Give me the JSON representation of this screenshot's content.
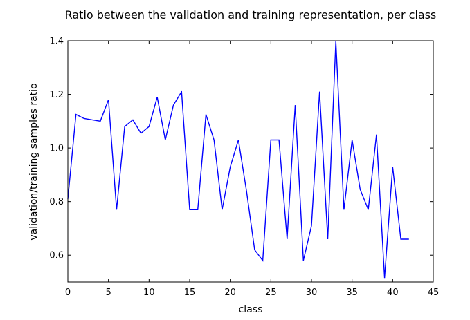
{
  "chart_data": {
    "type": "line",
    "title": "Ratio between the validation and training representation, per class",
    "xlabel": "class",
    "ylabel": "validation/training samples ratio",
    "xlim": [
      0,
      45
    ],
    "ylim": [
      0.5,
      1.4
    ],
    "xticks": [
      0,
      5,
      10,
      15,
      20,
      25,
      30,
      35,
      40,
      45
    ],
    "yticks": [
      0.6,
      0.8,
      1.0,
      1.2,
      1.4
    ],
    "grid": false,
    "series": [
      {
        "color": "#0000ff",
        "x": [
          0,
          1,
          2,
          3,
          4,
          5,
          6,
          7,
          8,
          9,
          10,
          11,
          12,
          13,
          14,
          15,
          16,
          17,
          18,
          19,
          20,
          21,
          22,
          23,
          24,
          25,
          26,
          27,
          28,
          29,
          30,
          31,
          32,
          33,
          34,
          35,
          36,
          37,
          38,
          39,
          40,
          41,
          42
        ],
        "values": [
          0.81,
          1.125,
          1.11,
          1.105,
          1.1,
          1.18,
          0.77,
          1.08,
          1.105,
          1.055,
          1.08,
          1.19,
          1.03,
          1.16,
          1.21,
          0.77,
          0.77,
          1.125,
          1.03,
          0.77,
          0.93,
          1.03,
          0.84,
          0.62,
          0.58,
          1.03,
          1.03,
          0.66,
          1.16,
          0.58,
          0.71,
          1.21,
          0.66,
          1.4,
          0.77,
          1.03,
          0.845,
          0.77,
          1.05,
          0.515,
          0.93,
          0.66,
          0.66
        ]
      }
    ]
  }
}
